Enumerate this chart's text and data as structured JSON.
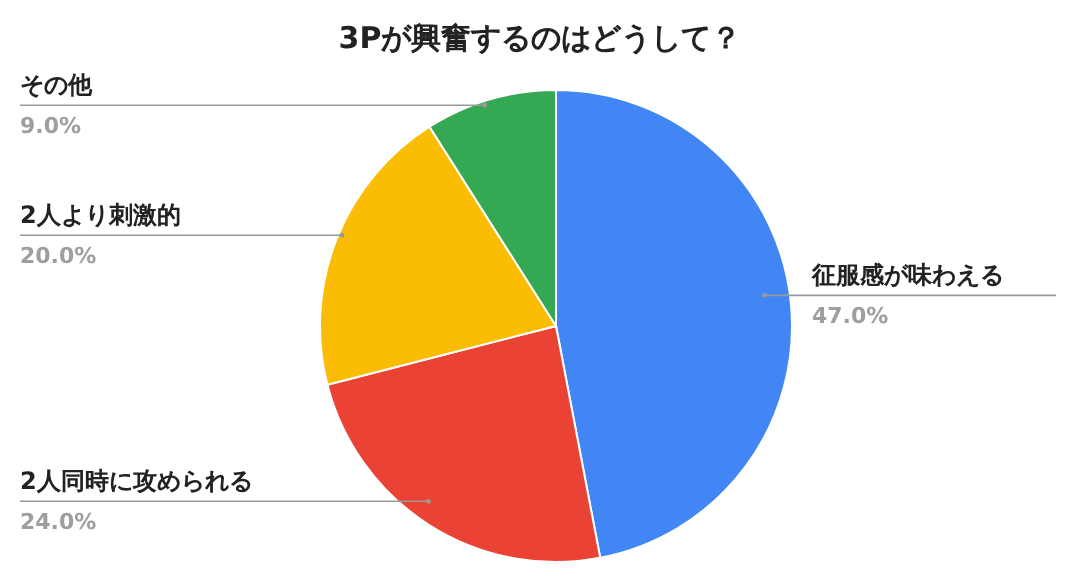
{
  "chart_data": {
    "type": "pie",
    "title": "3Pが興奮するのはどうして？",
    "categories": [
      "征服感が味わえる",
      "2人同時に攻められる",
      "2人より刺激的",
      "その他"
    ],
    "values": [
      47,
      24,
      20,
      9
    ],
    "colors": [
      "#4285f4",
      "#ea4335",
      "#fbbc04",
      "#34a853"
    ],
    "value_labels": [
      "47.0%",
      "24.0%",
      "20.0%",
      "9.0%"
    ]
  }
}
